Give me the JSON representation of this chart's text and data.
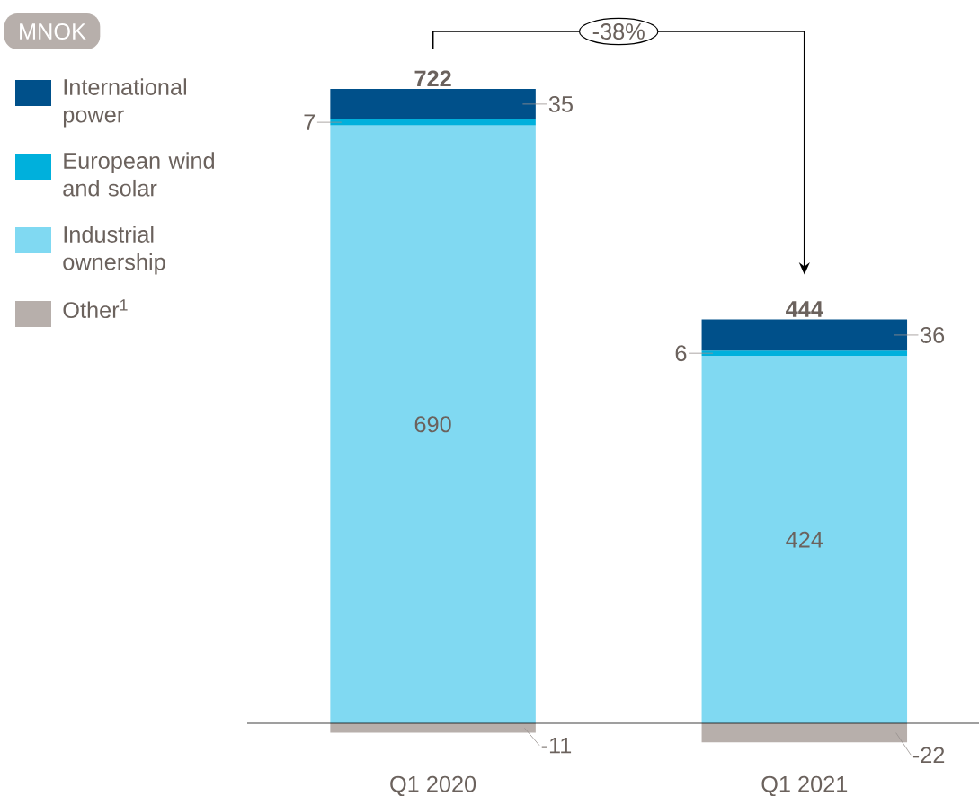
{
  "chart_data": {
    "type": "bar",
    "categories": [
      "Q1 2020",
      "Q1 2021"
    ],
    "stacked": true,
    "data_labels": true,
    "totals": [
      "722",
      "444"
    ],
    "legend": "left",
    "annotations": [
      "-38%",
      "MNOK"
    ],
    "series": [
      {
        "name": "Industrial ownership",
        "color": "#80d9f2",
        "values": [
          690,
          424
        ]
      },
      {
        "name": "European wind and solar",
        "color": "#00b0dc",
        "values": [
          7,
          6
        ]
      },
      {
        "name": "International power",
        "color": "#00508a",
        "values": [
          35,
          36
        ]
      },
      {
        "name": "Other$^{1}$",
        "color": "#b7afab",
        "values": [
          -11,
          -22
        ]
      }
    ]
  }
}
